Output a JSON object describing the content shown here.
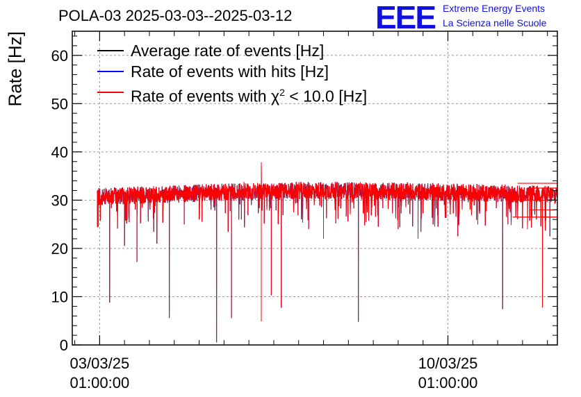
{
  "title": "POLA-03 2025-03-03--2025-03-12",
  "logo": {
    "text": "EEE",
    "line1": "Extreme Energy Events",
    "line2": "La Scienza nelle Scuole"
  },
  "colors": {
    "average": "#000000",
    "hits": "#0000ff",
    "chi2": "#ff0000",
    "logo": "#1010e0",
    "grid": "#999999"
  },
  "legend": [
    {
      "label": "Average rate of events [Hz]",
      "color": "#000000"
    },
    {
      "label": "Rate of events with hits [Hz]",
      "color": "#0000ff"
    },
    {
      "label_prefix": "Rate of events with χ",
      "label_sup": "2",
      "label_suffix": " < 10.0 [Hz]",
      "color": "#ff0000"
    }
  ],
  "chart_data": {
    "type": "line",
    "title": "POLA-03 2025-03-03--2025-03-12",
    "xlabel": "",
    "ylabel": "Rate [Hz]",
    "x_unit": "days since 03/03/25 01:00:00",
    "xlim": [
      -0.55,
      9.2
    ],
    "ylim": [
      0,
      65
    ],
    "yticks": [
      0,
      10,
      20,
      30,
      40,
      50,
      60
    ],
    "xticks": [
      {
        "x": 0,
        "label_date": "03/03/25",
        "label_time": "01:00:00"
      },
      {
        "x": 7,
        "label_date": "10/03/25",
        "label_time": "01:00:00"
      }
    ],
    "grid": true,
    "series": [
      {
        "name": "Average rate of events [Hz]",
        "color": "#000000",
        "baseline": 30.8,
        "range": [
          -0.05,
          9.2
        ]
      },
      {
        "name": "Rate of events with hits [Hz]",
        "color": "#0000ff",
        "baseline": 30.8,
        "range": [
          -0.05,
          9.2
        ]
      },
      {
        "name": "Rate of events with chi2 < 10.0 [Hz]",
        "color": "#ff0000",
        "baseline": 30.8,
        "range": [
          -0.05,
          9.2
        ]
      }
    ],
    "dips": [
      [
        -0.03,
        24.5
      ],
      [
        0.2,
        8.8
      ],
      [
        0.5,
        20.5
      ],
      [
        0.75,
        17.2
      ],
      [
        1.15,
        21.0
      ],
      [
        1.4,
        5.6
      ],
      [
        1.7,
        25.0
      ],
      [
        2.35,
        0.5
      ],
      [
        2.65,
        5.6
      ],
      [
        2.85,
        26.0
      ],
      [
        3.25,
        4.9
      ],
      [
        3.45,
        10.3
      ],
      [
        3.65,
        7.7
      ],
      [
        4.2,
        24.0
      ],
      [
        4.5,
        22.0
      ],
      [
        5.2,
        4.8
      ],
      [
        5.6,
        24.5
      ],
      [
        6.0,
        24.0
      ],
      [
        6.4,
        22.0
      ],
      [
        7.2,
        22.5
      ],
      [
        7.6,
        25.0
      ],
      [
        8.1,
        7.4
      ],
      [
        8.6,
        24.0
      ],
      [
        8.9,
        7.8
      ],
      [
        9.05,
        22.5
      ],
      [
        8.5,
        25.5
      ],
      [
        6.8,
        24.5
      ],
      [
        2.0,
        26.0
      ]
    ],
    "spikes": [
      [
        3.25,
        37.8
      ],
      [
        2.9,
        33.8
      ],
      [
        3.6,
        33.5
      ],
      [
        4.1,
        33.2
      ]
    ],
    "trailing_levels": [
      33.5,
      32.5,
      31.0,
      30.0,
      28.0,
      26.5
    ]
  }
}
